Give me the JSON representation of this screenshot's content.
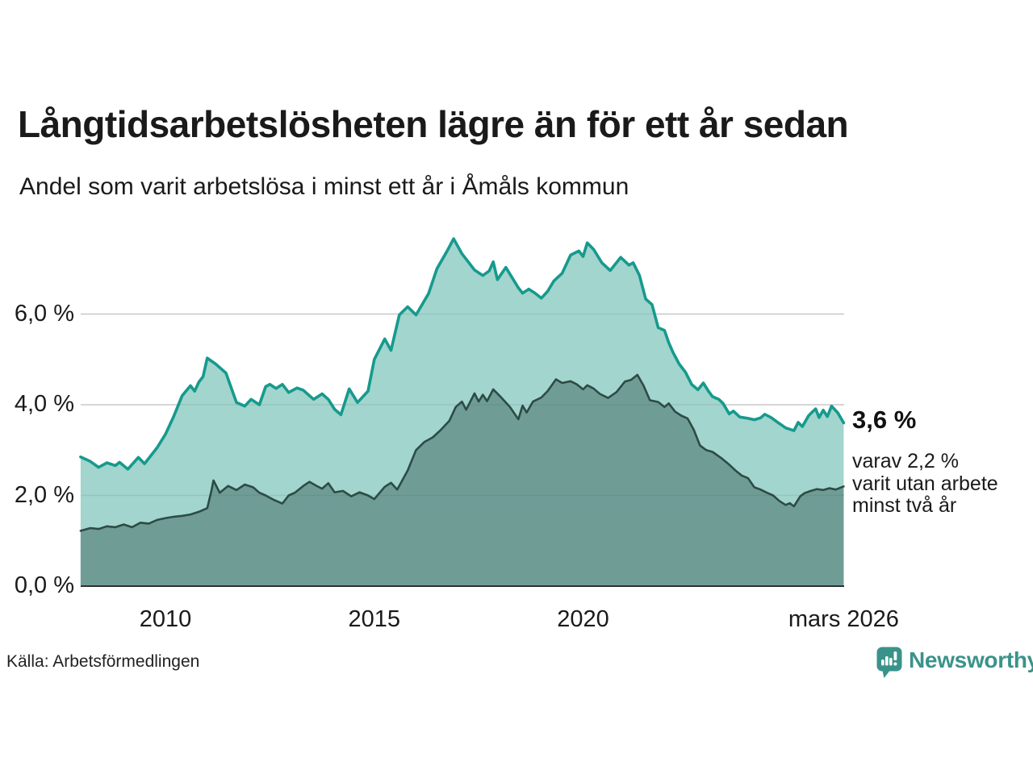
{
  "header": {
    "title": "Långtidsarbetslösheten lägre än för ett år sedan",
    "subtitle": "Andel som varit arbetslösa i minst ett år i Åmåls kommun"
  },
  "annotations": {
    "latest_value": "3,6 %",
    "note_lines": [
      "varav 2,2 %",
      "varit utan arbete",
      "minst två år"
    ]
  },
  "footer": {
    "source": "Källa: Arbetsförmedlingen",
    "brand": "Newsworthy"
  },
  "colors": {
    "text": "#1a1a1a",
    "gridline": "#d9d9d9",
    "axis_line": "#2f2f2f",
    "series1_line": "#169a8d",
    "series1_fill": "#a2d5cd",
    "series2_line": "#2d4b46",
    "series2_fill": "#6f9d96",
    "brand": "#3a938a"
  },
  "chart_data": {
    "type": "area",
    "title": "Långtidsarbetslösheten lägre än för ett år sedan",
    "subtitle": "Andel som varit arbetslösa i minst ett år i Åmåls kommun",
    "unit": "%",
    "grid": true,
    "legend_position": "none",
    "x_range": [
      2007.97,
      2026.24
    ],
    "ylim": [
      0,
      8
    ],
    "y_ticks": [
      {
        "label": "0,0 %",
        "value": 0
      },
      {
        "label": "2,0 %",
        "value": 2
      },
      {
        "label": "4,0 %",
        "value": 4
      },
      {
        "label": "6,0 %",
        "value": 6
      }
    ],
    "x_ticks": [
      {
        "label": "2010",
        "year": 2010
      },
      {
        "label": "2015",
        "year": 2015
      },
      {
        "label": "2020",
        "year": 2020
      },
      {
        "label": "mars 2026",
        "year": 2026.24
      }
    ],
    "latest": {
      "unemployed_min_one_year": "3,6 %",
      "unemployed_min_two_years": "2,2 %"
    },
    "series": [
      {
        "name": "Andel arbetslösa minst ett år",
        "line_color": "#169a8d",
        "fill_color": "#a2d5cd",
        "line_width": 3.6,
        "points": [
          [
            2007.97,
            2.85
          ],
          [
            2008.2,
            2.75
          ],
          [
            2008.4,
            2.62
          ],
          [
            2008.6,
            2.72
          ],
          [
            2008.8,
            2.66
          ],
          [
            2008.9,
            2.73
          ],
          [
            2009.1,
            2.58
          ],
          [
            2009.35,
            2.84
          ],
          [
            2009.5,
            2.7
          ],
          [
            2009.8,
            3.05
          ],
          [
            2010.0,
            3.35
          ],
          [
            2010.2,
            3.75
          ],
          [
            2010.4,
            4.2
          ],
          [
            2010.6,
            4.42
          ],
          [
            2010.7,
            4.3
          ],
          [
            2010.8,
            4.5
          ],
          [
            2010.9,
            4.62
          ],
          [
            2011.0,
            5.03
          ],
          [
            2011.2,
            4.9
          ],
          [
            2011.45,
            4.7
          ],
          [
            2011.7,
            4.05
          ],
          [
            2011.9,
            3.97
          ],
          [
            2012.05,
            4.12
          ],
          [
            2012.25,
            4.0
          ],
          [
            2012.4,
            4.4
          ],
          [
            2012.5,
            4.45
          ],
          [
            2012.65,
            4.36
          ],
          [
            2012.8,
            4.45
          ],
          [
            2012.95,
            4.27
          ],
          [
            2013.15,
            4.37
          ],
          [
            2013.3,
            4.32
          ],
          [
            2013.45,
            4.2
          ],
          [
            2013.55,
            4.12
          ],
          [
            2013.75,
            4.24
          ],
          [
            2013.9,
            4.12
          ],
          [
            2014.05,
            3.9
          ],
          [
            2014.2,
            3.78
          ],
          [
            2014.4,
            4.35
          ],
          [
            2014.6,
            4.05
          ],
          [
            2014.85,
            4.3
          ],
          [
            2015.0,
            5.0
          ],
          [
            2015.25,
            5.45
          ],
          [
            2015.4,
            5.2
          ],
          [
            2015.6,
            5.98
          ],
          [
            2015.8,
            6.16
          ],
          [
            2016.0,
            5.98
          ],
          [
            2016.3,
            6.45
          ],
          [
            2016.5,
            7.0
          ],
          [
            2016.75,
            7.4
          ],
          [
            2016.9,
            7.66
          ],
          [
            2017.1,
            7.33
          ],
          [
            2017.4,
            6.97
          ],
          [
            2017.6,
            6.85
          ],
          [
            2017.75,
            6.95
          ],
          [
            2017.85,
            7.15
          ],
          [
            2017.95,
            6.76
          ],
          [
            2018.15,
            7.03
          ],
          [
            2018.25,
            6.88
          ],
          [
            2018.45,
            6.58
          ],
          [
            2018.55,
            6.46
          ],
          [
            2018.7,
            6.55
          ],
          [
            2018.85,
            6.46
          ],
          [
            2019.0,
            6.35
          ],
          [
            2019.15,
            6.5
          ],
          [
            2019.3,
            6.73
          ],
          [
            2019.5,
            6.9
          ],
          [
            2019.7,
            7.3
          ],
          [
            2019.9,
            7.39
          ],
          [
            2020.0,
            7.27
          ],
          [
            2020.1,
            7.57
          ],
          [
            2020.25,
            7.43
          ],
          [
            2020.45,
            7.13
          ],
          [
            2020.65,
            6.96
          ],
          [
            2020.9,
            7.25
          ],
          [
            2021.1,
            7.08
          ],
          [
            2021.2,
            7.13
          ],
          [
            2021.35,
            6.85
          ],
          [
            2021.5,
            6.33
          ],
          [
            2021.65,
            6.21
          ],
          [
            2021.8,
            5.7
          ],
          [
            2021.95,
            5.64
          ],
          [
            2022.05,
            5.37
          ],
          [
            2022.15,
            5.16
          ],
          [
            2022.3,
            4.9
          ],
          [
            2022.45,
            4.72
          ],
          [
            2022.6,
            4.45
          ],
          [
            2022.75,
            4.33
          ],
          [
            2022.88,
            4.48
          ],
          [
            2023.0,
            4.3
          ],
          [
            2023.1,
            4.18
          ],
          [
            2023.25,
            4.12
          ],
          [
            2023.35,
            4.03
          ],
          [
            2023.5,
            3.8
          ],
          [
            2023.6,
            3.86
          ],
          [
            2023.75,
            3.73
          ],
          [
            2023.95,
            3.7
          ],
          [
            2024.1,
            3.67
          ],
          [
            2024.25,
            3.71
          ],
          [
            2024.35,
            3.79
          ],
          [
            2024.5,
            3.72
          ],
          [
            2024.65,
            3.62
          ],
          [
            2024.85,
            3.49
          ],
          [
            2024.95,
            3.46
          ],
          [
            2025.05,
            3.43
          ],
          [
            2025.15,
            3.61
          ],
          [
            2025.25,
            3.52
          ],
          [
            2025.4,
            3.76
          ],
          [
            2025.5,
            3.85
          ],
          [
            2025.57,
            3.91
          ],
          [
            2025.65,
            3.72
          ],
          [
            2025.75,
            3.88
          ],
          [
            2025.85,
            3.74
          ],
          [
            2025.95,
            3.97
          ],
          [
            2026.1,
            3.82
          ],
          [
            2026.24,
            3.6
          ]
        ]
      },
      {
        "name": "Varav utan arbete minst två år",
        "line_color": "#2d4b46",
        "fill_color": "#6f9d96",
        "line_width": 2.6,
        "points": [
          [
            2007.97,
            1.22
          ],
          [
            2008.2,
            1.28
          ],
          [
            2008.4,
            1.26
          ],
          [
            2008.6,
            1.32
          ],
          [
            2008.8,
            1.3
          ],
          [
            2009.0,
            1.36
          ],
          [
            2009.2,
            1.3
          ],
          [
            2009.4,
            1.4
          ],
          [
            2009.6,
            1.38
          ],
          [
            2009.8,
            1.46
          ],
          [
            2010.0,
            1.5
          ],
          [
            2010.2,
            1.53
          ],
          [
            2010.4,
            1.55
          ],
          [
            2010.6,
            1.58
          ],
          [
            2010.8,
            1.64
          ],
          [
            2011.0,
            1.72
          ],
          [
            2011.1,
            2.1
          ],
          [
            2011.15,
            2.33
          ],
          [
            2011.3,
            2.06
          ],
          [
            2011.5,
            2.21
          ],
          [
            2011.7,
            2.12
          ],
          [
            2011.9,
            2.24
          ],
          [
            2012.1,
            2.18
          ],
          [
            2012.25,
            2.06
          ],
          [
            2012.4,
            2.0
          ],
          [
            2012.6,
            1.9
          ],
          [
            2012.8,
            1.82
          ],
          [
            2012.95,
            2.0
          ],
          [
            2013.1,
            2.06
          ],
          [
            2013.3,
            2.21
          ],
          [
            2013.45,
            2.3
          ],
          [
            2013.6,
            2.22
          ],
          [
            2013.75,
            2.15
          ],
          [
            2013.9,
            2.27
          ],
          [
            2014.05,
            2.07
          ],
          [
            2014.25,
            2.1
          ],
          [
            2014.45,
            1.98
          ],
          [
            2014.65,
            2.07
          ],
          [
            2014.85,
            2.0
          ],
          [
            2015.0,
            1.92
          ],
          [
            2015.25,
            2.19
          ],
          [
            2015.4,
            2.28
          ],
          [
            2015.55,
            2.13
          ],
          [
            2015.8,
            2.55
          ],
          [
            2016.0,
            3.0
          ],
          [
            2016.2,
            3.18
          ],
          [
            2016.4,
            3.28
          ],
          [
            2016.6,
            3.45
          ],
          [
            2016.8,
            3.65
          ],
          [
            2016.95,
            3.95
          ],
          [
            2017.1,
            4.07
          ],
          [
            2017.2,
            3.89
          ],
          [
            2017.4,
            4.25
          ],
          [
            2017.5,
            4.07
          ],
          [
            2017.6,
            4.22
          ],
          [
            2017.7,
            4.08
          ],
          [
            2017.85,
            4.34
          ],
          [
            2018.0,
            4.2
          ],
          [
            2018.15,
            4.05
          ],
          [
            2018.25,
            3.95
          ],
          [
            2018.45,
            3.68
          ],
          [
            2018.55,
            3.98
          ],
          [
            2018.65,
            3.83
          ],
          [
            2018.8,
            4.07
          ],
          [
            2019.0,
            4.16
          ],
          [
            2019.15,
            4.3
          ],
          [
            2019.35,
            4.56
          ],
          [
            2019.5,
            4.48
          ],
          [
            2019.7,
            4.52
          ],
          [
            2019.85,
            4.45
          ],
          [
            2020.0,
            4.34
          ],
          [
            2020.1,
            4.43
          ],
          [
            2020.25,
            4.36
          ],
          [
            2020.4,
            4.24
          ],
          [
            2020.6,
            4.15
          ],
          [
            2020.8,
            4.28
          ],
          [
            2021.0,
            4.51
          ],
          [
            2021.15,
            4.55
          ],
          [
            2021.3,
            4.66
          ],
          [
            2021.45,
            4.42
          ],
          [
            2021.6,
            4.1
          ],
          [
            2021.8,
            4.06
          ],
          [
            2021.95,
            3.95
          ],
          [
            2022.05,
            4.03
          ],
          [
            2022.2,
            3.85
          ],
          [
            2022.35,
            3.76
          ],
          [
            2022.5,
            3.7
          ],
          [
            2022.65,
            3.45
          ],
          [
            2022.8,
            3.1
          ],
          [
            2022.95,
            3.0
          ],
          [
            2023.1,
            2.96
          ],
          [
            2023.3,
            2.83
          ],
          [
            2023.5,
            2.68
          ],
          [
            2023.65,
            2.55
          ],
          [
            2023.8,
            2.44
          ],
          [
            2023.95,
            2.38
          ],
          [
            2024.1,
            2.18
          ],
          [
            2024.25,
            2.13
          ],
          [
            2024.4,
            2.06
          ],
          [
            2024.55,
            2.0
          ],
          [
            2024.7,
            1.88
          ],
          [
            2024.85,
            1.79
          ],
          [
            2024.95,
            1.83
          ],
          [
            2025.05,
            1.76
          ],
          [
            2025.2,
            1.98
          ],
          [
            2025.3,
            2.05
          ],
          [
            2025.45,
            2.1
          ],
          [
            2025.6,
            2.14
          ],
          [
            2025.75,
            2.12
          ],
          [
            2025.9,
            2.16
          ],
          [
            2026.05,
            2.13
          ],
          [
            2026.24,
            2.2
          ]
        ]
      }
    ]
  }
}
